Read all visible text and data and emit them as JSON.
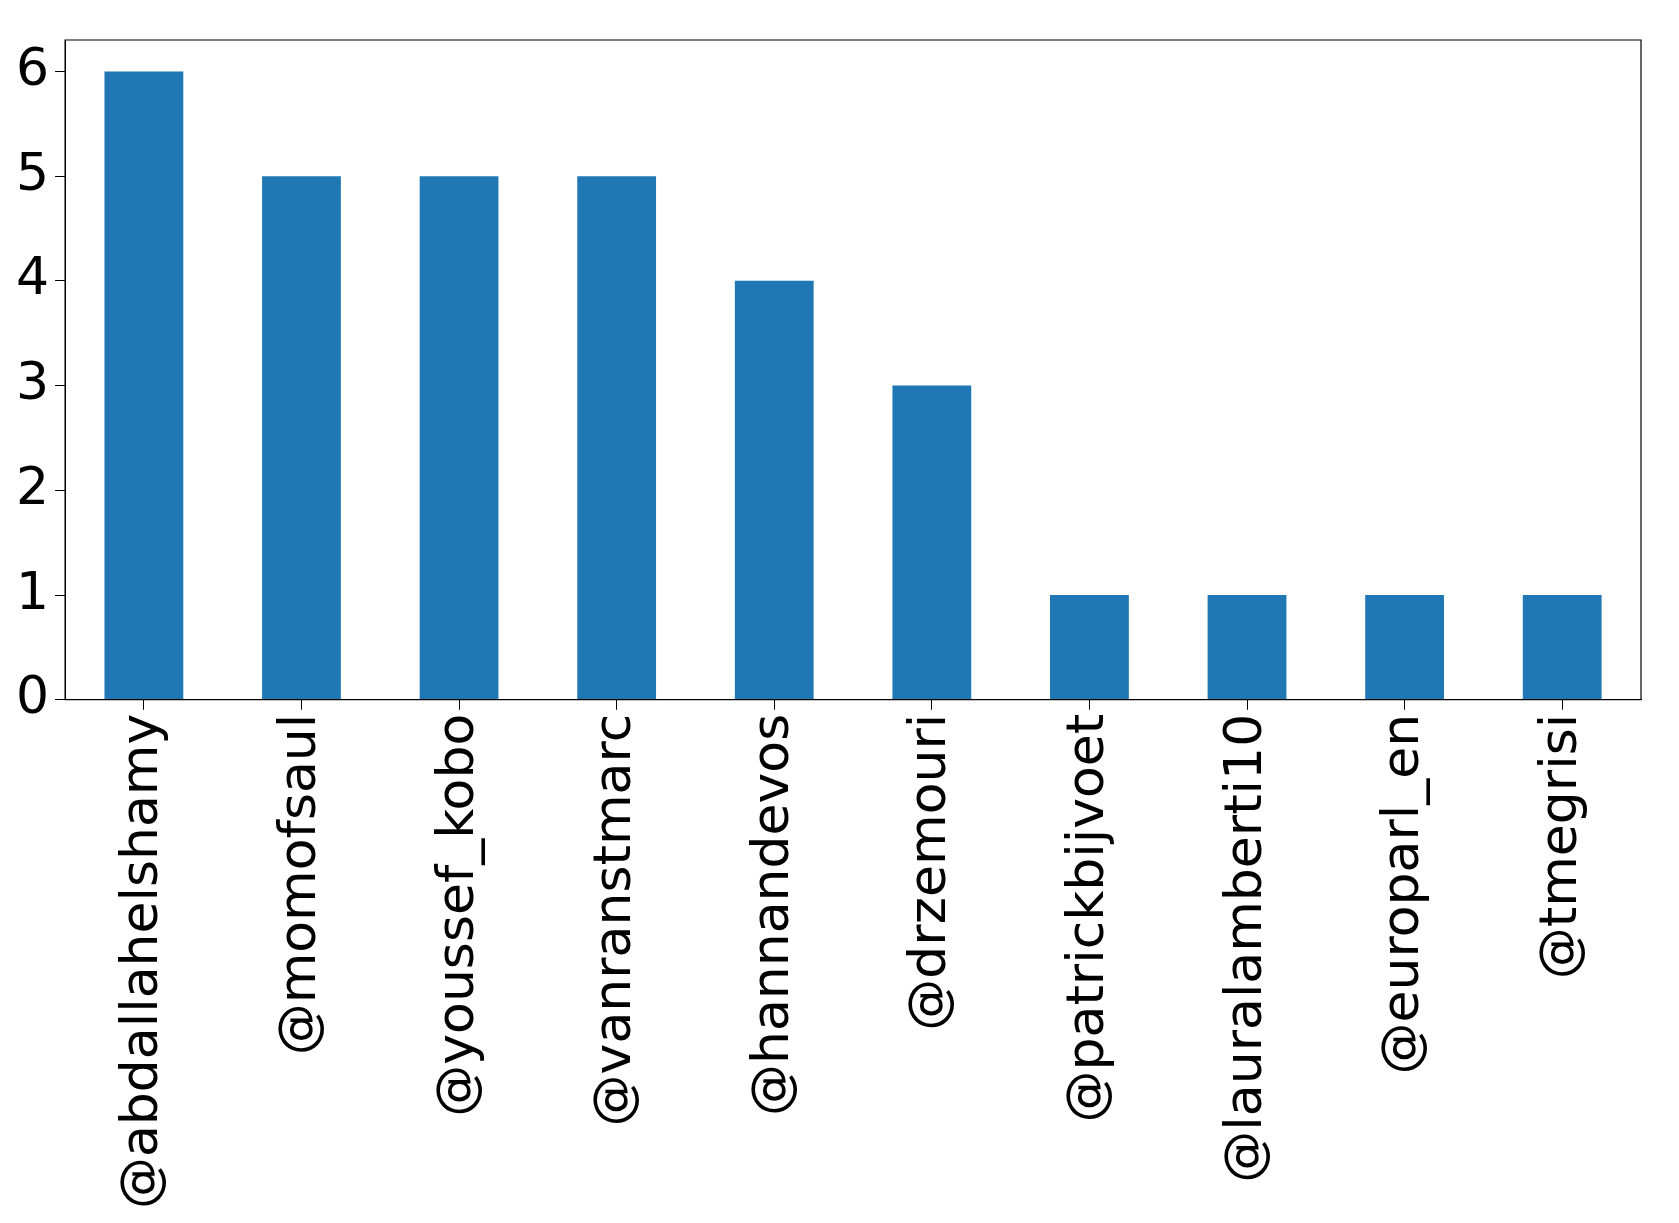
{
  "chart_data": {
    "type": "bar",
    "categories": [
      "@abdallahelshamy",
      "@momofsaul",
      "@youssef_kobo",
      "@vanranstmarc",
      "@hannandevos",
      "@drzemouri",
      "@patrickbijvoet",
      "@lauralamberti10",
      "@europarl_en",
      "@tmegrisi"
    ],
    "values": [
      6,
      5,
      5,
      5,
      4,
      3,
      1,
      1,
      1,
      1
    ],
    "color": "#1f77b4",
    "ylim": [
      0,
      6.3
    ],
    "yticks": [
      0,
      1,
      2,
      3,
      4,
      5,
      6
    ],
    "grid": false,
    "legend": false
  }
}
